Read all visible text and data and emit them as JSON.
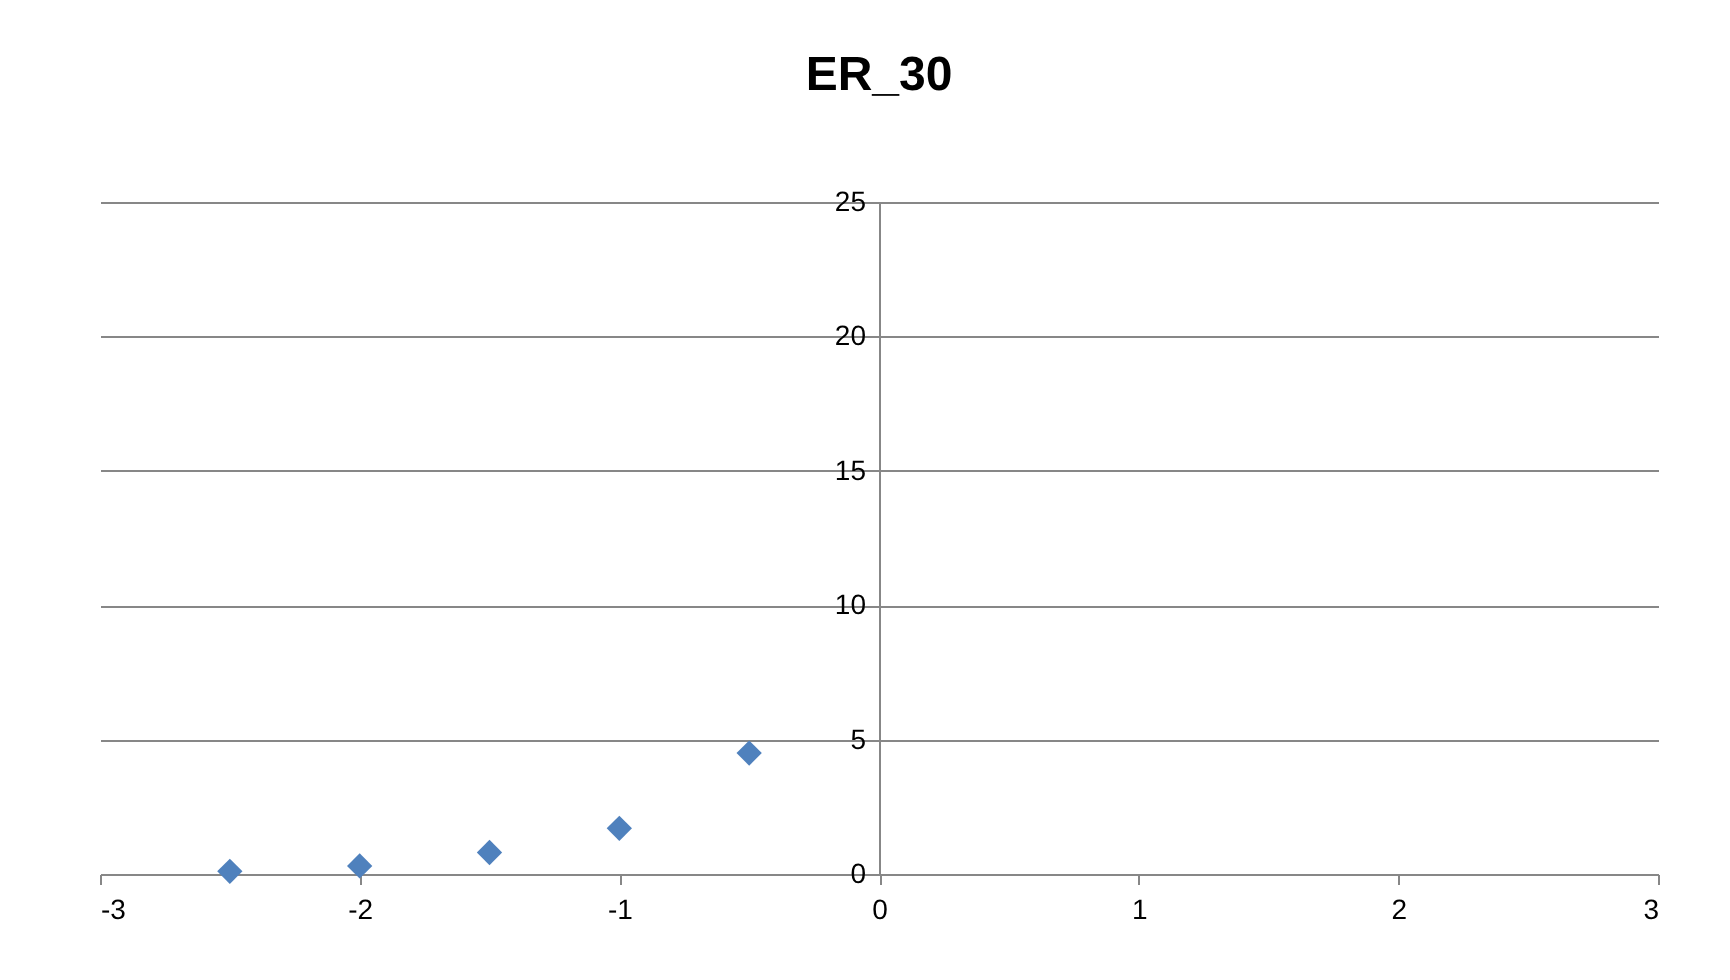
{
  "chart_data": {
    "type": "scatter",
    "title": "ER_30",
    "x": [
      -2.5,
      -2,
      -1.5,
      -1,
      -0.5
    ],
    "series": [
      {
        "color": "#4f81bd",
        "values": [
          0.1,
          0.3,
          0.8,
          1.7,
          4.5
        ]
      }
    ],
    "xlim": [
      -3,
      3
    ],
    "xticks": [
      -3,
      -2,
      -1,
      0,
      1,
      2,
      3
    ],
    "ylim": [
      0,
      25
    ],
    "yticks": [
      0,
      5,
      10,
      15,
      20,
      25
    ],
    "grid": "y",
    "marker": "diamond"
  }
}
